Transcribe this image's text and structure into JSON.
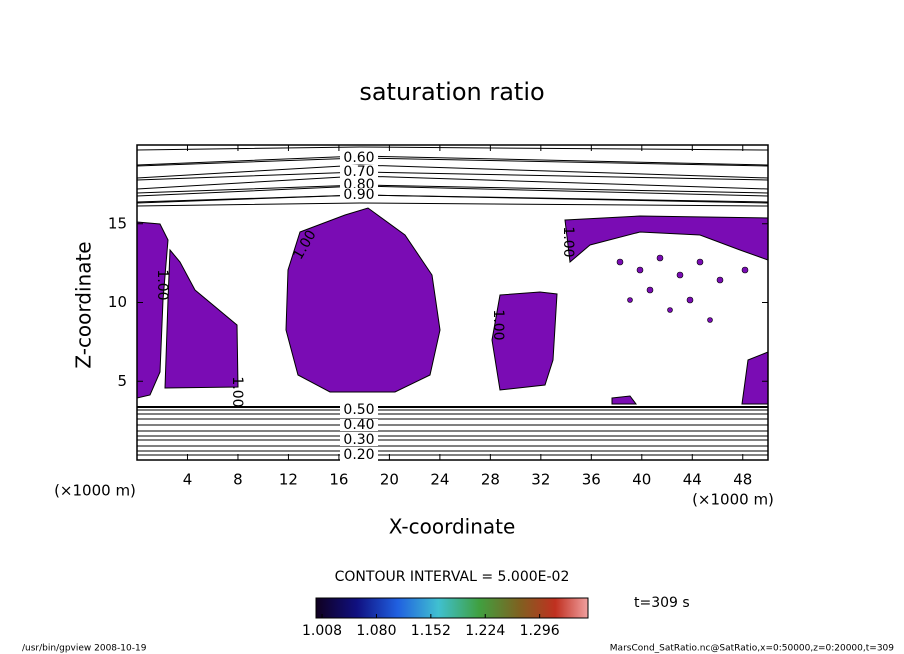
{
  "chart_data": {
    "type": "contour",
    "title": "saturation ratio",
    "x_label": "X-coordinate",
    "y_label": "Z-coordinate",
    "x_unit": "(×1000 m)",
    "y_unit": "(×1000 m)",
    "xlim": [
      0,
      50
    ],
    "xticks": [
      4,
      8,
      12,
      16,
      20,
      24,
      28,
      32,
      36,
      40,
      44,
      48
    ],
    "ylim": [
      0,
      20
    ],
    "yticks": [
      5,
      10,
      15
    ],
    "fill_color": "#7a0cb4",
    "levels_top": [
      {
        "value": 0.6,
        "label": "0.60"
      },
      {
        "value": 0.7,
        "label": "0.70"
      },
      {
        "value": 0.8,
        "label": "0.80"
      },
      {
        "value": 0.9,
        "label": "0.90"
      }
    ],
    "levels_bottom": [
      {
        "value": 0.5,
        "label": "0.50"
      },
      {
        "value": 0.4,
        "label": "0.40"
      },
      {
        "value": 0.3,
        "label": "0.30"
      },
      {
        "value": 0.2,
        "label": "0.20"
      }
    ],
    "level_one": {
      "value": 1.0,
      "label": "1.00"
    },
    "contour_interval": "CONTOUR INTERVAL = 5.000E-02",
    "clim": [
      1.0,
      1.36
    ],
    "cticks": [
      {
        "value": 1.008,
        "label": "1.008"
      },
      {
        "value": 1.08,
        "label": "1.080"
      },
      {
        "value": 1.152,
        "label": "1.152"
      },
      {
        "value": 1.224,
        "label": "1.224"
      },
      {
        "value": 1.296,
        "label": "1.296"
      }
    ],
    "time_label": "t=309 s",
    "footer_left": "/usr/bin/gpview  2008-10-19",
    "footer_right": "MarsCond_SatRatio.nc@SatRatio,x=0:50000,z=0:20000,t=309"
  }
}
